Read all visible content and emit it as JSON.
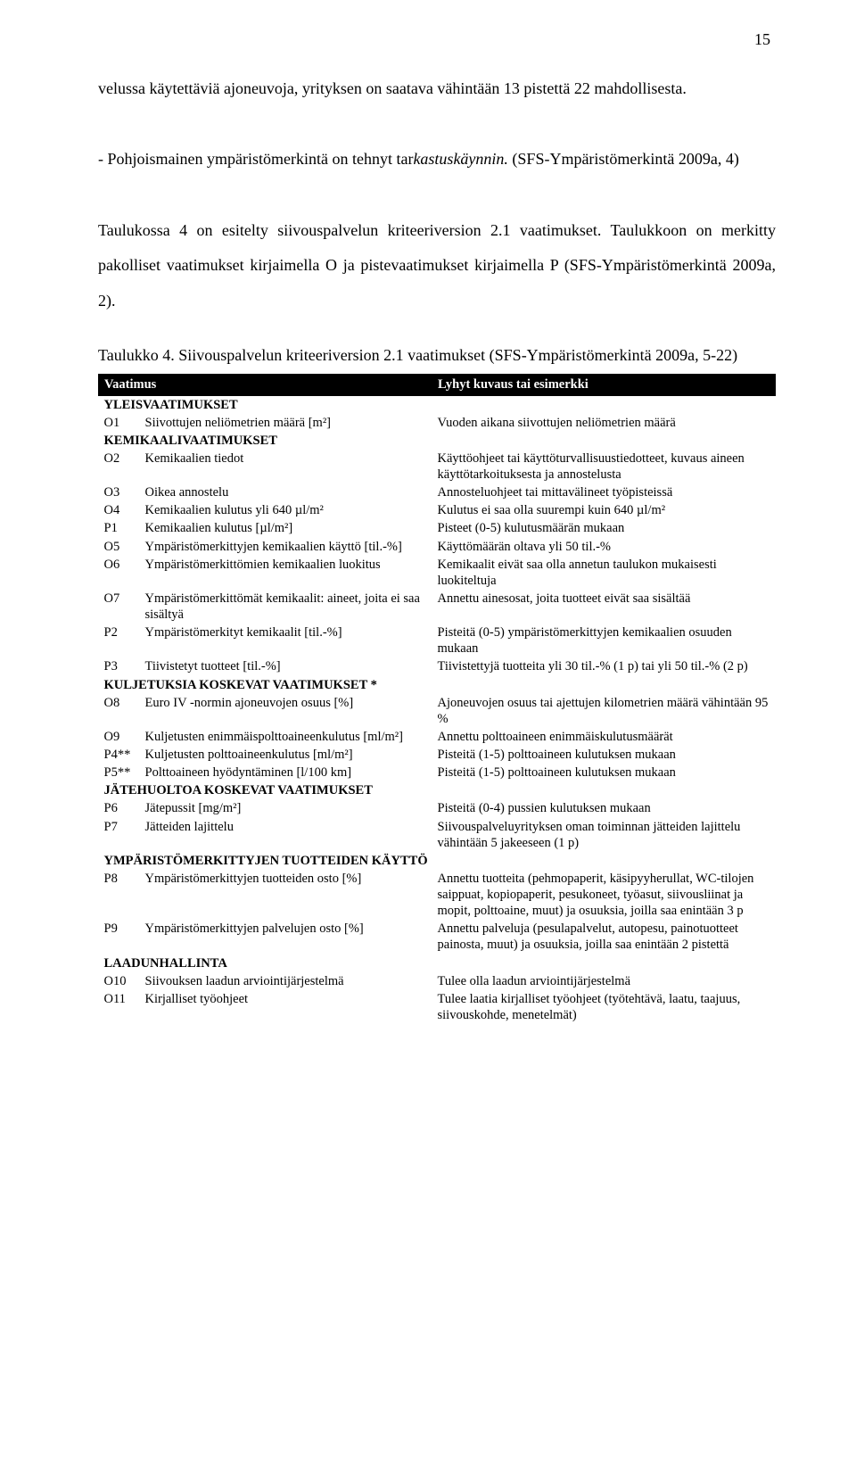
{
  "page_number": "15",
  "body_text_parts": {
    "p1a": "velussa käytettäviä ajoneuvoja, yrityksen on saatava vähintään 13 pistettä 22 mahdollisesta.",
    "p1b": "- Pohjoismainen ympäristömerkintä on tehnyt tar",
    "p1b_italic": "kastuskäynnin.",
    "p1c": " (SFS-Ympäristömerkintä 2009a, 4)",
    "p2": "Taulukossa 4 on esitelty siivouspalvelun kriteeriversion 2.1 vaatimukset. Taulukkoon on merkitty pakolliset vaatimukset kirjaimella O ja pistevaatimukset kirjaimella P (SFS-Ympäristömerkintä 2009a, 2)."
  },
  "caption": "Taulukko 4. Siivouspalvelun kriteeriversion 2.1 vaatimukset (SFS-Ympäristömerkintä 2009a, 5-22)",
  "header": {
    "col1": "Vaatimus",
    "col2": "Lyhyt kuvaus tai esimerkki"
  },
  "sections": [
    {
      "title": "YLEISVAATIMUKSET",
      "rows": [
        {
          "code": "O1",
          "req": "Siivottujen neliömetrien määrä [m²]",
          "desc": "Vuoden aikana siivottujen neliömetrien määrä"
        }
      ]
    },
    {
      "title": "KEMIKAALIVAATIMUKSET",
      "rows": [
        {
          "code": "O2",
          "req": "Kemikaalien tiedot",
          "desc": "Käyttöohjeet tai käyttöturvallisuustiedotteet, kuvaus aineen käyttötarkoituksesta ja annostelusta"
        },
        {
          "code": "O3",
          "req": "Oikea annostelu",
          "desc": "Annosteluohjeet tai mittavälineet työpisteissä"
        },
        {
          "code": "O4",
          "req": "Kemikaalien kulutus yli 640 µl/m²",
          "desc": "Kulutus ei saa olla suurempi kuin 640 µl/m²"
        },
        {
          "code": "P1",
          "req": "Kemikaalien kulutus [µl/m²]",
          "desc": "Pisteet (0-5) kulutusmäärän mukaan"
        },
        {
          "code": "O5",
          "req": "Ympäristömerkittyjen kemikaalien käyttö [til.-%]",
          "desc": "Käyttömäärän oltava yli 50 til.-%"
        },
        {
          "code": "O6",
          "req": "Ympäristömerkittömien kemikaalien luokitus",
          "desc": "Kemikaalit eivät saa olla annetun taulukon mukaisesti luokiteltuja"
        },
        {
          "code": "O7",
          "req": "Ympäristömerkittömät kemikaalit: aineet, joita ei saa sisältyä",
          "desc": "Annettu ainesosat, joita tuotteet eivät saa sisältää"
        },
        {
          "code": "P2",
          "req": "Ympäristömerkityt kemikaalit [til.-%]",
          "desc": "Pisteitä (0-5) ympäristömerkittyjen kemikaalien osuuden mukaan"
        },
        {
          "code": "P3",
          "req": "Tiivistetyt tuotteet [til.-%]",
          "desc": "Tiivistettyjä tuotteita yli 30 til.-% (1 p) tai yli 50 til.-% (2 p)"
        }
      ]
    },
    {
      "title": "KULJETUKSIA KOSKEVAT VAATIMUKSET *",
      "rows": [
        {
          "code": "O8",
          "req": "Euro IV -normin ajoneuvojen osuus [%]",
          "desc": "Ajoneuvojen osuus tai ajettujen kilometrien määrä vähintään 95 %"
        },
        {
          "code": "O9",
          "req": "Kuljetusten enimmäispolttoaineenkulutus [ml/m²]",
          "desc": "Annettu polttoaineen enimmäiskulutusmäärät"
        },
        {
          "code": "P4**",
          "req": "Kuljetusten polttoaineenkulutus [ml/m²]",
          "desc": "Pisteitä (1-5) polttoaineen kulutuksen mukaan"
        },
        {
          "code": "P5**",
          "req": "Polttoaineen hyödyntäminen [l/100 km]",
          "desc": "Pisteitä (1-5) polttoaineen kulutuksen mukaan"
        }
      ]
    },
    {
      "title": "JÄTEHUOLTOA KOSKEVAT VAATIMUKSET",
      "rows": [
        {
          "code": "P6",
          "req": "Jätepussit [mg/m²]",
          "desc": "Pisteitä (0-4) pussien kulutuksen mukaan"
        },
        {
          "code": "P7",
          "req": "Jätteiden lajittelu",
          "desc": "Siivouspalveluyrityksen oman toiminnan jätteiden lajittelu vähintään 5 jakeeseen (1 p)"
        }
      ]
    },
    {
      "title": "YMPÄRISTÖMERKITTYJEN TUOTTEIDEN KÄYTTÖ",
      "rows": [
        {
          "code": "P8",
          "req": "Ympäristömerkittyjen tuotteiden osto [%]",
          "desc": "Annettu tuotteita (pehmopaperit, käsipyyherullat, WC-tilojen saippuat, kopiopaperit, pesukoneet, työasut, siivousliinat ja mopit, polttoaine, muut) ja osuuksia, joilla saa enintään 3 p"
        },
        {
          "code": "P9",
          "req": "Ympäristömerkittyjen palvelujen osto [%]",
          "desc": "Annettu palveluja (pesulapalvelut, autopesu, painotuotteet painosta, muut) ja osuuksia, joilla saa enintään 2 pistettä"
        }
      ]
    },
    {
      "title": "LAADUNHALLINTA",
      "rows": [
        {
          "code": "O10",
          "req": "Siivouksen laadun arviointijärjestelmä",
          "desc": "Tulee olla laadun arviointijärjestelmä"
        },
        {
          "code": "O11",
          "req": "Kirjalliset työohjeet",
          "desc": "Tulee laatia kirjalliset työohjeet (työtehtävä, laatu, taajuus, siivouskohde, menetelmät)"
        }
      ]
    }
  ]
}
